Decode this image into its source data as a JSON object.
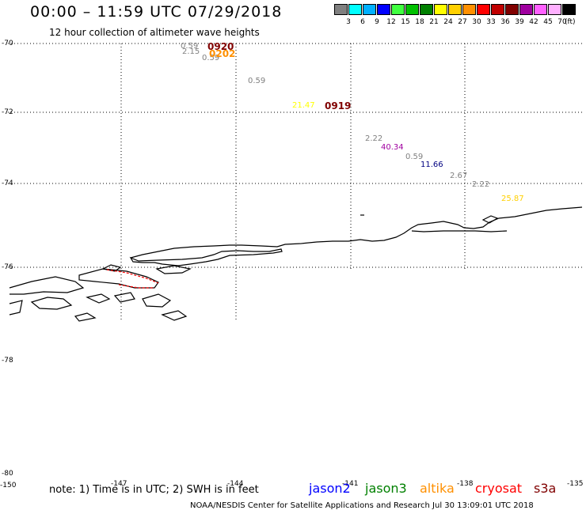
{
  "header": {
    "title": "00:00 – 11:59 UTC 07/29/2018",
    "subtitle": "12 hour collection of altimeter wave heights"
  },
  "legend": {
    "unit": "(ft)",
    "bins": [
      {
        "label": "3",
        "color": "#808080"
      },
      {
        "label": "6",
        "color": "#00ffff"
      },
      {
        "label": "9",
        "color": "#00b0ff"
      },
      {
        "label": "12",
        "color": "#0000ff"
      },
      {
        "label": "15",
        "color": "#40ff40"
      },
      {
        "label": "18",
        "color": "#00c000"
      },
      {
        "label": "21",
        "color": "#008000"
      },
      {
        "label": "24",
        "color": "#ffff00"
      },
      {
        "label": "27",
        "color": "#ffd000"
      },
      {
        "label": "30",
        "color": "#ff9000"
      },
      {
        "label": "33",
        "color": "#ff0000"
      },
      {
        "label": "36",
        "color": "#c00000"
      },
      {
        "label": "39",
        "color": "#800000"
      },
      {
        "label": "42",
        "color": "#a000a0"
      },
      {
        "label": "45",
        "color": "#ff60ff"
      },
      {
        "label": "70",
        "color": "#ffb0ff"
      },
      {
        "label": "",
        "color": "#000000"
      }
    ]
  },
  "lat_labels": [
    "-70",
    "-72",
    "-74",
    "-76",
    "-78",
    "-80"
  ],
  "lon_labels": [
    "-150",
    "-147",
    "-144",
    "-141",
    "-138",
    "-135"
  ],
  "observations": [
    {
      "text": "0.59",
      "color": "#808080"
    },
    {
      "text": "2.15",
      "color": "#808080"
    },
    {
      "text": "0.59",
      "color": "#808080"
    },
    {
      "text": "0.59",
      "color": "#808080"
    },
    {
      "text": "21.47",
      "color": "#ffff00"
    },
    {
      "text": "2.22",
      "color": "#808080"
    },
    {
      "text": "40.34",
      "color": "#a000a0"
    },
    {
      "text": "0.59",
      "color": "#808080"
    },
    {
      "text": "11.66",
      "color": "#000080"
    },
    {
      "text": "2.67",
      "color": "#808080"
    },
    {
      "text": "2.22",
      "color": "#808080"
    },
    {
      "text": "25.87",
      "color": "#ffd000"
    }
  ],
  "times": [
    {
      "text": "0920",
      "color": "#800000"
    },
    {
      "text": "0202",
      "color": "#ff9000"
    },
    {
      "text": "0919",
      "color": "#800000"
    }
  ],
  "footer": {
    "note": "note: 1) Time is in UTC; 2) SWH is in feet",
    "satellites": [
      {
        "name": "jason2",
        "color": "#0000ff"
      },
      {
        "name": "jason3",
        "color": "#008000"
      },
      {
        "name": "altika",
        "color": "#ff9000"
      },
      {
        "name": "cryosat",
        "color": "#ff0000"
      },
      {
        "name": "s3a",
        "color": "#800000"
      }
    ],
    "credit": "NOAA/NESDIS Center for Satellite Applications and Research    Jul 30 13:09:01 UTC 2018"
  }
}
